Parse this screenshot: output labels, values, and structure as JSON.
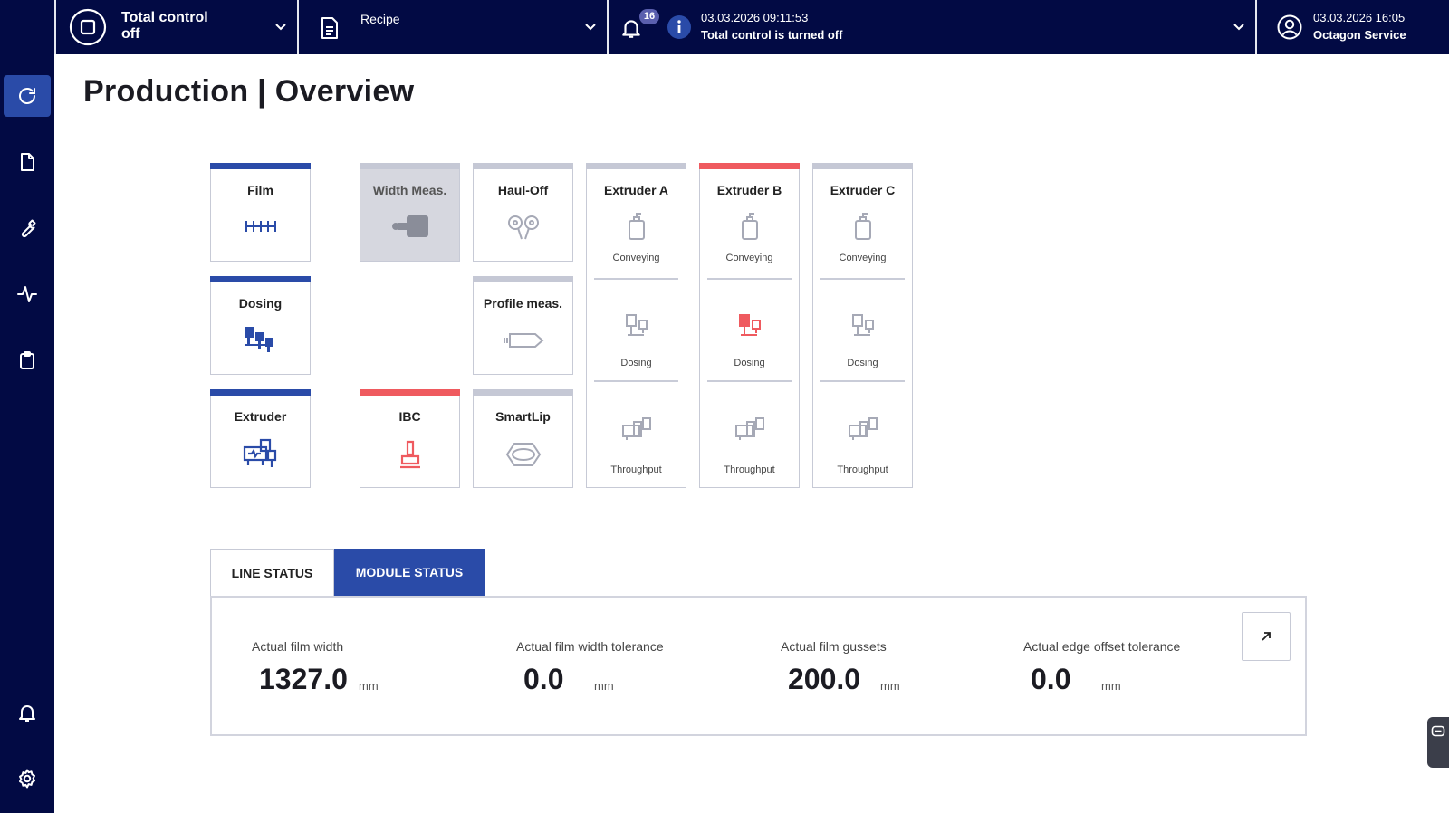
{
  "topbar": {
    "control_title": "Total control",
    "control_state": "off",
    "recipe_label": "Recipe",
    "notification_count": "16",
    "message_time": "03.03.2026 09:11:53",
    "message_text": "Total control is turned off",
    "user_time": "03.03.2026 16:05",
    "user_name": "Octagon Service"
  },
  "page": {
    "title": "Production | Overview"
  },
  "modules": {
    "film": "Film",
    "width_meas": "Width Meas.",
    "haul_off": "Haul-Off",
    "dosing": "Dosing",
    "profile_meas": "Profile meas.",
    "extruder": "Extruder",
    "ibc": "IBC",
    "smartlip": "SmartLip"
  },
  "extruders": [
    {
      "title": "Extruder A",
      "conveying": "Conveying",
      "dosing": "Dosing",
      "throughput": "Throughput"
    },
    {
      "title": "Extruder B",
      "conveying": "Conveying",
      "dosing": "Dosing",
      "throughput": "Throughput"
    },
    {
      "title": "Extruder C",
      "conveying": "Conveying",
      "dosing": "Dosing",
      "throughput": "Throughput"
    }
  ],
  "tabs": {
    "line_status": "LINE STATUS",
    "module_status": "MODULE STATUS"
  },
  "metrics": [
    {
      "label": "Actual film width",
      "value": "1327.0",
      "unit": "mm"
    },
    {
      "label": "Actual film width tolerance",
      "value": "0.0",
      "unit": "mm"
    },
    {
      "label": "Actual film gussets",
      "value": "200.0",
      "unit": "mm"
    },
    {
      "label": "Actual edge offset tolerance",
      "value": "0.0",
      "unit": "mm"
    }
  ],
  "colors": {
    "navy": "#020a44",
    "accent": "#2a4ba8",
    "alarm": "#ef5a5f",
    "neutral": "#c5c8d5"
  },
  "icons": [
    "refresh-icon",
    "document-icon",
    "wrench-icon",
    "activity-icon",
    "clipboard-icon",
    "bell-icon",
    "gear-icon"
  ]
}
